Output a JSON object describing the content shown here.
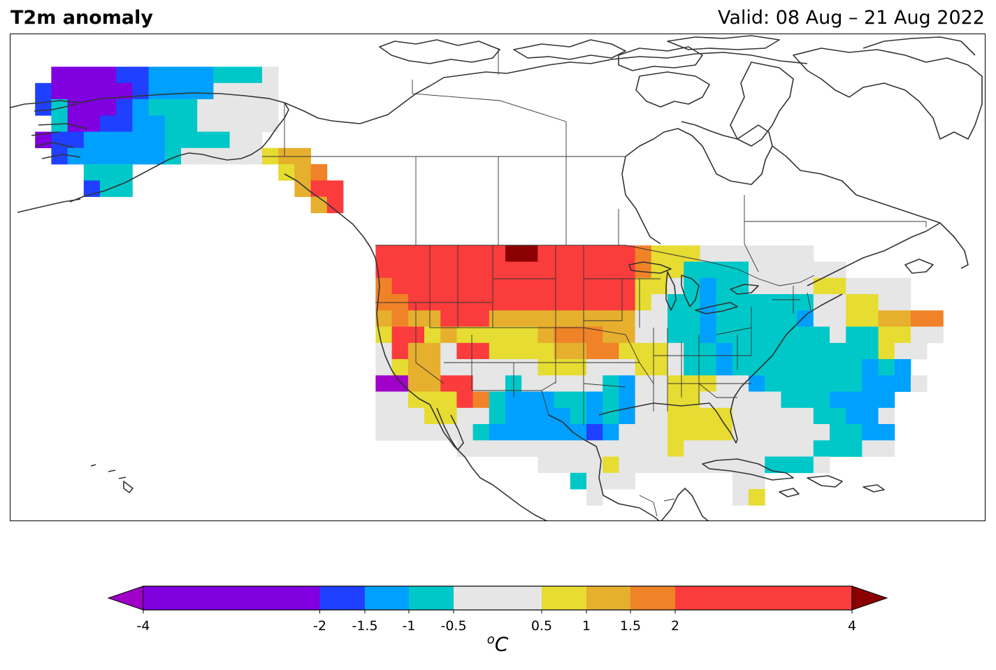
{
  "header": {
    "title": "T2m anomaly",
    "valid": "Valid: 08 Aug – 21 Aug 2022"
  },
  "colorbar": {
    "unit_prefix": "o",
    "unit_main": "C",
    "ticks": [
      {
        "label": "-4",
        "value": -4
      },
      {
        "label": "-2",
        "value": -2
      },
      {
        "label": "-1.5",
        "value": -1.5
      },
      {
        "label": "-1",
        "value": -1
      },
      {
        "label": "-0.5",
        "value": -0.5
      },
      {
        "label": "0.5",
        "value": 0.5
      },
      {
        "label": "1",
        "value": 1
      },
      {
        "label": "1.5",
        "value": 1.5
      },
      {
        "label": "2",
        "value": 2
      },
      {
        "label": "4",
        "value": 4
      }
    ],
    "bins": [
      {
        "from": -4,
        "to": -2,
        "color": "#8000e0"
      },
      {
        "from": -2,
        "to": -1.5,
        "color": "#2040ff"
      },
      {
        "from": -1.5,
        "to": -1,
        "color": "#00a0ff"
      },
      {
        "from": -1,
        "to": -0.5,
        "color": "#00c8c8"
      },
      {
        "from": -0.5,
        "to": 0.5,
        "color": "#e6e6e6"
      },
      {
        "from": 0.5,
        "to": 1,
        "color": "#e6dc32"
      },
      {
        "from": 1,
        "to": 1.5,
        "color": "#e6af2d"
      },
      {
        "from": 1.5,
        "to": 2,
        "color": "#f08228"
      },
      {
        "from": 2,
        "to": 4,
        "color": "#fa3c3c"
      }
    ],
    "under_color": "#a000c8",
    "over_color": "#8b0000"
  }
}
